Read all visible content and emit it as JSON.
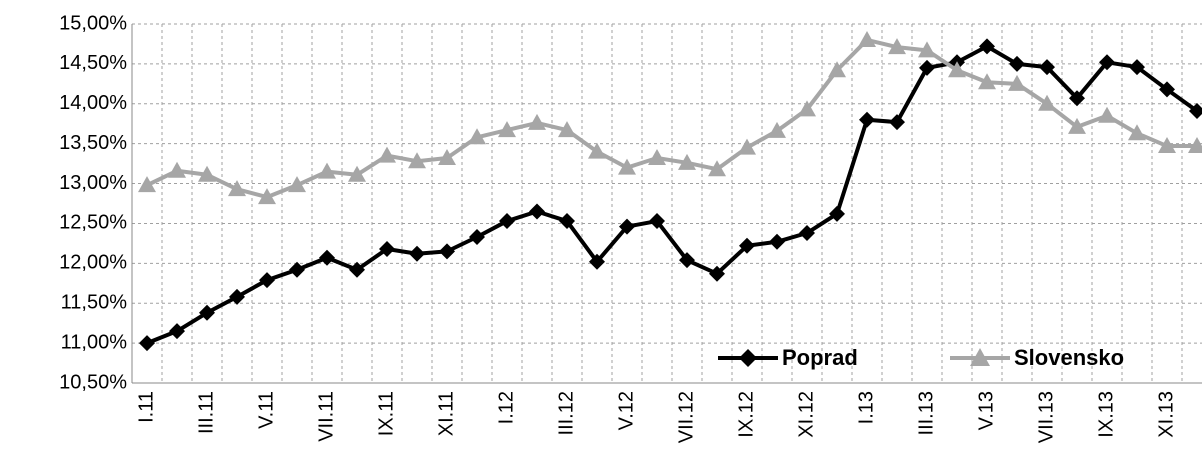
{
  "chart_data": {
    "type": "line",
    "categories": [
      "I.11",
      null,
      "III.11",
      null,
      "V.11",
      null,
      "VII.11",
      null,
      "IX.11",
      null,
      "XI.11",
      null,
      "I.12",
      null,
      "III.12",
      null,
      "V.12",
      null,
      "VII.12",
      null,
      "IX.12",
      null,
      "XI.12",
      null,
      "I.13",
      null,
      "III.13",
      null,
      "V.13",
      null,
      "VII.13",
      null,
      "IX.13",
      null,
      "XI.13",
      null
    ],
    "series": [
      {
        "name": "Poprad",
        "color": "#000000",
        "marker": "diamond",
        "values": [
          11.0,
          11.15,
          11.38,
          11.58,
          11.79,
          11.92,
          12.07,
          11.92,
          12.18,
          12.12,
          12.15,
          12.33,
          12.53,
          12.65,
          12.53,
          12.02,
          12.46,
          12.53,
          12.04,
          11.87,
          12.22,
          12.27,
          12.38,
          12.62,
          13.8,
          13.77,
          14.45,
          14.52,
          14.72,
          14.5,
          14.46,
          14.07,
          14.52,
          14.46,
          14.18,
          13.91
        ]
      },
      {
        "name": "Slovensko",
        "color": "#a6a6a6",
        "marker": "triangle",
        "values": [
          12.98,
          13.16,
          13.11,
          12.93,
          12.83,
          12.98,
          13.15,
          13.11,
          13.35,
          13.28,
          13.32,
          13.58,
          13.67,
          13.76,
          13.67,
          13.4,
          13.2,
          13.32,
          13.26,
          13.18,
          13.45,
          13.66,
          13.93,
          14.42,
          14.8,
          14.71,
          14.67,
          14.42,
          14.27,
          14.25,
          14.0,
          13.71,
          13.85,
          13.63,
          13.47,
          13.47
        ]
      }
    ],
    "ylim": [
      10.5,
      15.0
    ],
    "yticks": [
      {
        "value": 10.5,
        "label": "10,50%"
      },
      {
        "value": 11.0,
        "label": "11,00%"
      },
      {
        "value": 11.5,
        "label": "11,50%"
      },
      {
        "value": 12.0,
        "label": "12,00%"
      },
      {
        "value": 12.5,
        "label": "12,50%"
      },
      {
        "value": 13.0,
        "label": "13,00%"
      },
      {
        "value": 13.5,
        "label": "13,50%"
      },
      {
        "value": 14.0,
        "label": "14,00%"
      },
      {
        "value": 14.5,
        "label": "14,50%"
      },
      {
        "value": 15.0,
        "label": "15,00%"
      }
    ],
    "grid": true,
    "legend": "lower right"
  }
}
